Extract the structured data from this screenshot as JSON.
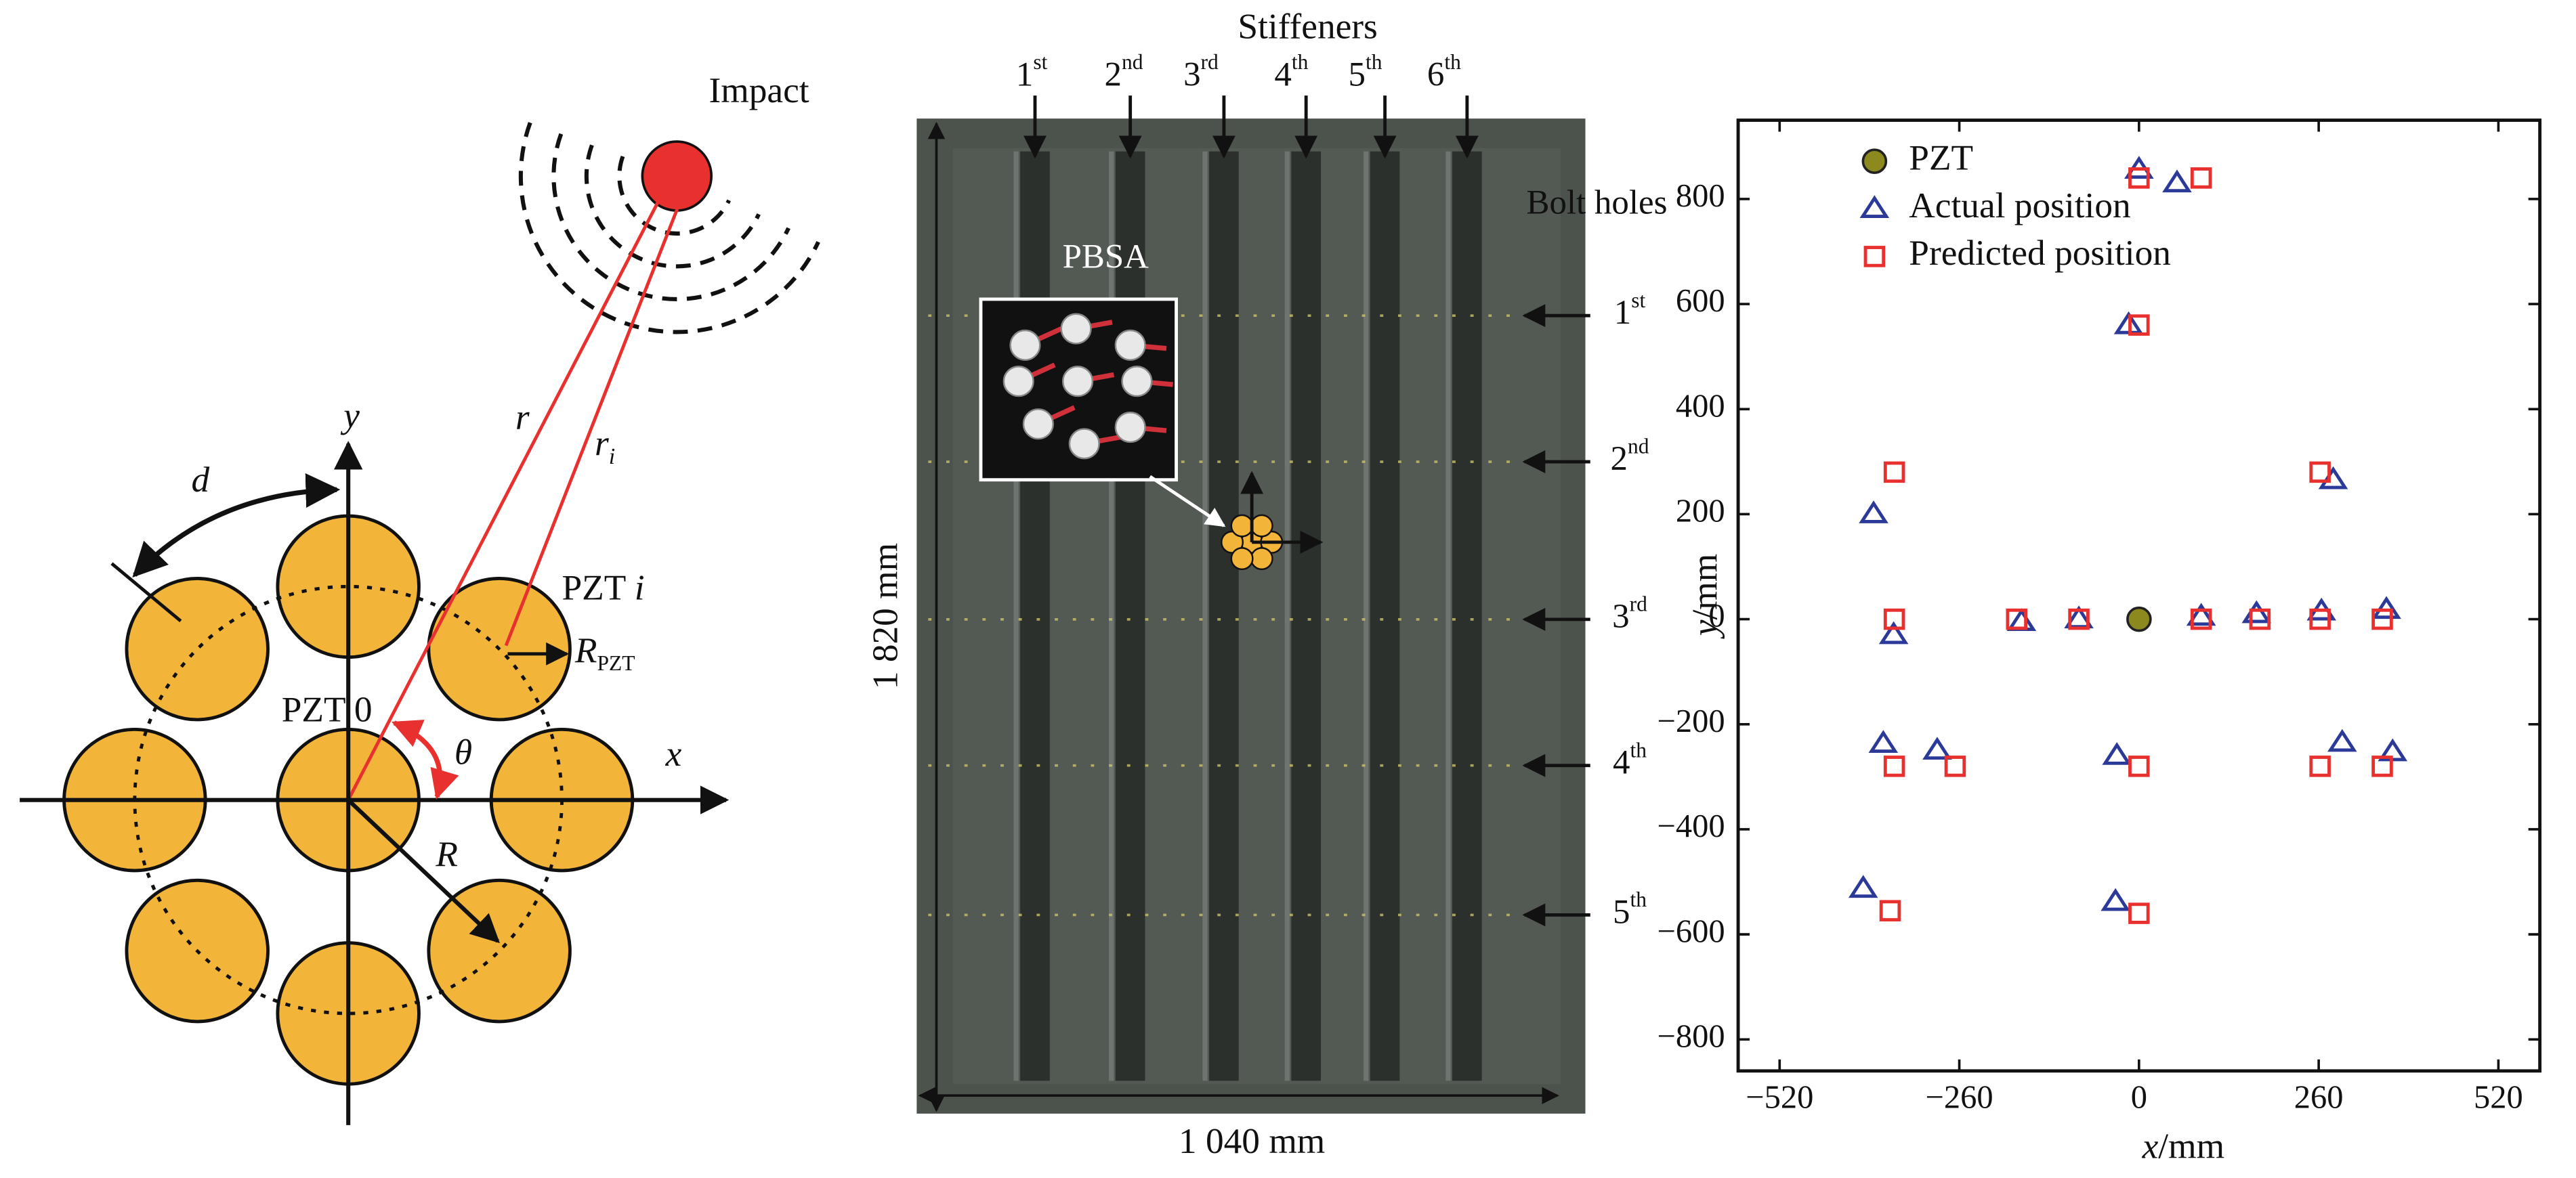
{
  "diagram": {
    "impact": "Impact",
    "y_axis": "y",
    "x_axis": "x",
    "d": "d",
    "r": "r",
    "r_i": {
      "base": "r",
      "sub": "i"
    },
    "pzt_i": {
      "base": "PZT ",
      "italic": "i"
    },
    "r_pzt": {
      "base": "R",
      "sub": "PZT"
    },
    "pzt_0": "PZT 0",
    "theta": "θ",
    "R": "R"
  },
  "photo": {
    "stiffeners_title": "Stiffeners",
    "stiffeners": [
      {
        "n": "1",
        "sup": "st"
      },
      {
        "n": "2",
        "sup": "nd"
      },
      {
        "n": "3",
        "sup": "rd"
      },
      {
        "n": "4",
        "sup": "th"
      },
      {
        "n": "5",
        "sup": "th"
      },
      {
        "n": "6",
        "sup": "th"
      }
    ],
    "bolt_holes_title": "Bolt holes",
    "bolt_holes": [
      {
        "n": "1",
        "sup": "st"
      },
      {
        "n": "2",
        "sup": "nd"
      },
      {
        "n": "3",
        "sup": "rd"
      },
      {
        "n": "4",
        "sup": "th"
      },
      {
        "n": "5",
        "sup": "th"
      }
    ],
    "pbsa": "PBSA",
    "height": "1 820 mm",
    "width": "1 040 mm"
  },
  "chart_data": {
    "type": "scatter",
    "x_label": {
      "base": "x",
      "unit": "/mm"
    },
    "y_label": {
      "base": "y",
      "unit": "/mm"
    },
    "xlim": [
      -580,
      580
    ],
    "ylim": [
      -860,
      950
    ],
    "xticks": [
      {
        "value": -520,
        "label": "−520"
      },
      {
        "value": -260,
        "label": "−260"
      },
      0,
      260,
      520
    ],
    "yticks": [
      {
        "value": -800,
        "label": "−800"
      },
      {
        "value": -600,
        "label": "−600"
      },
      {
        "value": -400,
        "label": "−400"
      },
      {
        "value": -200,
        "label": "−200"
      },
      0,
      200,
      400,
      600,
      800
    ],
    "legend": "upper left",
    "series": [
      {
        "name": "PZT",
        "marker": "circle",
        "color": "#8c8a1e",
        "x": [
          0
        ],
        "y": [
          0
        ]
      },
      {
        "name": "Actual position",
        "marker": "triangle",
        "color": "#2b3a98",
        "x": [
          0,
          55,
          -15,
          -384,
          -355,
          -170,
          -87,
          90,
          170,
          264,
          281,
          358,
          -370,
          -292,
          -32,
          294,
          367,
          -399,
          -34
        ],
        "y": [
          856,
          830,
          560,
          200,
          -30,
          -5,
          0,
          5,
          10,
          15,
          265,
          18,
          -237,
          -250,
          -260,
          -235,
          -253,
          -513,
          -538
        ]
      },
      {
        "name": "Predicted position",
        "marker": "square",
        "color": "#e8312f",
        "x": [
          0,
          90,
          0,
          -354,
          262,
          -354,
          -177,
          -87,
          90,
          175,
          262,
          352,
          -354,
          -266,
          0,
          262,
          352,
          -360,
          0
        ],
        "y": [
          840,
          840,
          560,
          280,
          280,
          0,
          0,
          0,
          0,
          0,
          0,
          0,
          -280,
          -280,
          -280,
          -280,
          -280,
          -555,
          -560
        ]
      }
    ]
  }
}
